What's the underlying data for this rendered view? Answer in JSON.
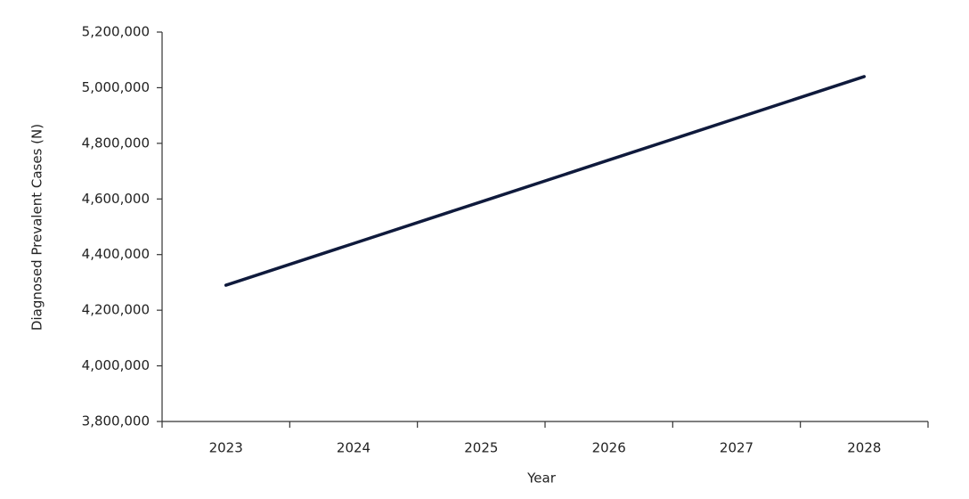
{
  "chart_data": {
    "type": "line",
    "x_label": "Year",
    "y_label": "Diagnosed Prevalent Cases (N)",
    "categories": [
      "2023",
      "2024",
      "2025",
      "2026",
      "2027",
      "2028"
    ],
    "series": [
      {
        "color": "#0f1a3c",
        "values": [
          4290000,
          4440000,
          4590000,
          4740000,
          4890000,
          5040000
        ]
      }
    ],
    "ylim": [
      3800000,
      5200000
    ],
    "yticks": [
      {
        "value": 3800000,
        "label": "3,800,000"
      },
      {
        "value": 4000000,
        "label": "4,000,000"
      },
      {
        "value": 4200000,
        "label": "4,200,000"
      },
      {
        "value": 4400000,
        "label": "4,400,000"
      },
      {
        "value": 4600000,
        "label": "4,600,000"
      },
      {
        "value": 4800000,
        "label": "4,800,000"
      },
      {
        "value": 5000000,
        "label": "5,000,000"
      },
      {
        "value": 5200000,
        "label": "5,200,000"
      }
    ],
    "grid": false
  }
}
